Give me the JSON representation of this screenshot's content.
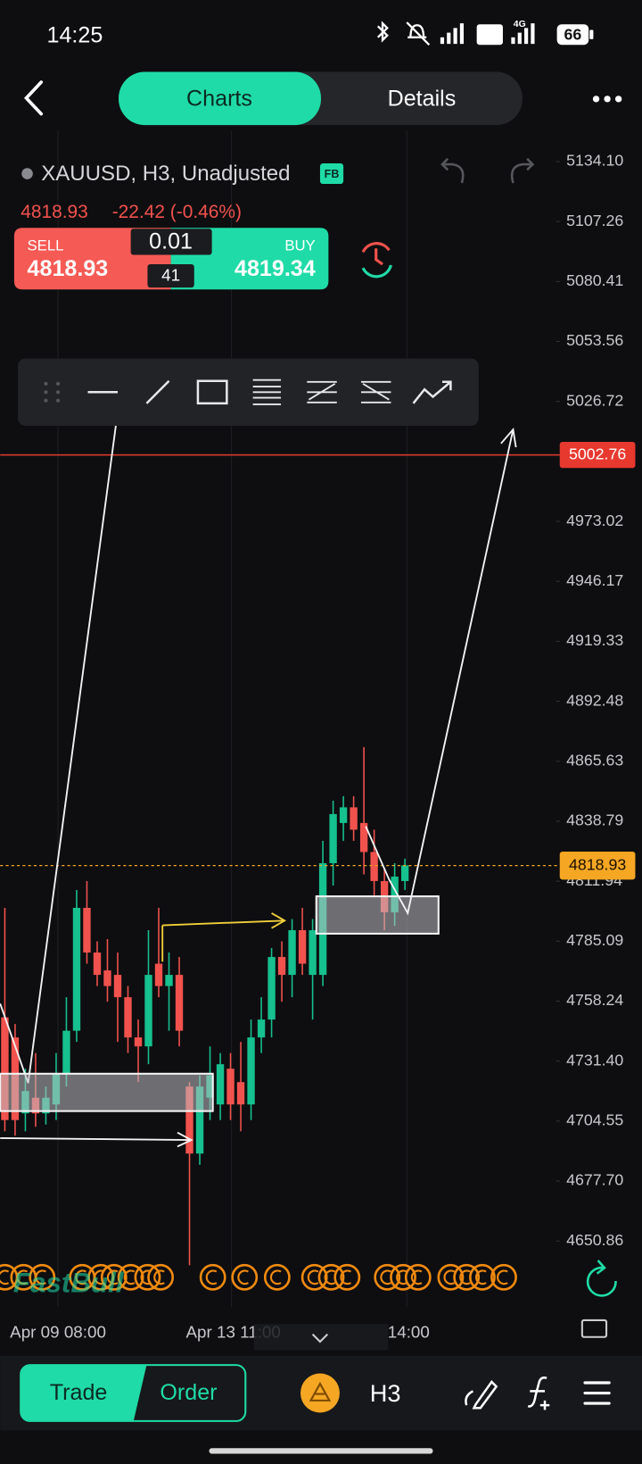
{
  "status_bar": {
    "time": "14:25",
    "network": "4G",
    "battery": "66"
  },
  "tabs": [
    "Charts",
    "Details"
  ],
  "instrument": {
    "symbol": "XAUUSD, H3, Unadjusted",
    "badge": "FB",
    "last": "4818.93",
    "change": "-22.42 (-0.46%)"
  },
  "order_panel": {
    "sell_label": "SELL",
    "sell_price": "4818.93",
    "lot": "0.01",
    "spread": "41",
    "buy_label": "BUY",
    "buy_price": "4819.34"
  },
  "chart_data": {
    "type": "candlestick",
    "ylim": [
      4620,
      5150
    ],
    "yticks": [
      {
        "value": 5134.1,
        "label": "5134.10"
      },
      5107.26,
      5080.41,
      5053.56,
      5026.72,
      4973.02,
      4946.17,
      4919.33,
      4892.48,
      4865.63,
      4838.79,
      4811.94,
      4785.09,
      4758.24,
      {
        "value": 4731.4,
        "label": "4731.40"
      },
      4704.55,
      {
        "value": 4677.7,
        "label": "4677.70"
      },
      4650.86
    ],
    "x_labels": [
      "Apr 09 08:00",
      "Apr 13 11:00",
      "14:00"
    ],
    "alert_line": 5002.76,
    "current_price": 4818.93,
    "up_color": "#16c08f",
    "down_color": "#f1524d",
    "alert_color": "#e8392f",
    "price_color": "#f5a623",
    "candles": {
      "open": [
        4751,
        4742,
        4708,
        4715,
        4708,
        4712,
        4726,
        4745,
        4800,
        4780,
        4772,
        4770,
        4760,
        4742,
        4738,
        4775,
        4765,
        4770,
        4720,
        4690,
        4715,
        4712,
        4728,
        4722,
        4712,
        4742,
        4750,
        4778,
        4770,
        4790,
        4770,
        4770,
        4820,
        4838,
        4845,
        4838,
        4825,
        4812,
        4798,
        4812
      ],
      "high": [
        4800,
        4748,
        4728,
        4735,
        4720,
        4735,
        4760,
        4808,
        4812,
        4785,
        4786,
        4780,
        4765,
        4750,
        4790,
        4800,
        4780,
        4778,
        4722,
        4725,
        4738,
        4735,
        4735,
        4740,
        4750,
        4760,
        4782,
        4785,
        4795,
        4800,
        4795,
        4830,
        4848,
        4850,
        4850,
        4872,
        4835,
        4818,
        4820,
        4822
      ],
      "low": [
        4700,
        4698,
        4700,
        4702,
        4703,
        4705,
        4720,
        4740,
        4775,
        4765,
        4758,
        4740,
        4735,
        4722,
        4730,
        4760,
        4745,
        4738,
        4640,
        4685,
        4705,
        4705,
        4705,
        4700,
        4705,
        4735,
        4742,
        4758,
        4760,
        4770,
        4750,
        4765,
        4810,
        4830,
        4830,
        4815,
        4805,
        4790,
        4792,
        4808
      ],
      "close": [
        4705,
        4705,
        4718,
        4708,
        4715,
        4726,
        4745,
        4800,
        4780,
        4770,
        4765,
        4760,
        4742,
        4738,
        4770,
        4765,
        4770,
        4745,
        4690,
        4720,
        4725,
        4730,
        4712,
        4712,
        4742,
        4750,
        4778,
        4770,
        4790,
        4775,
        4790,
        4820,
        4842,
        4845,
        4835,
        4825,
        4812,
        4798,
        4814,
        4819
      ]
    }
  },
  "watermark": "FastBull",
  "bottom_bar": {
    "trade": "Trade",
    "order": "Order",
    "timeframe": "H3"
  }
}
